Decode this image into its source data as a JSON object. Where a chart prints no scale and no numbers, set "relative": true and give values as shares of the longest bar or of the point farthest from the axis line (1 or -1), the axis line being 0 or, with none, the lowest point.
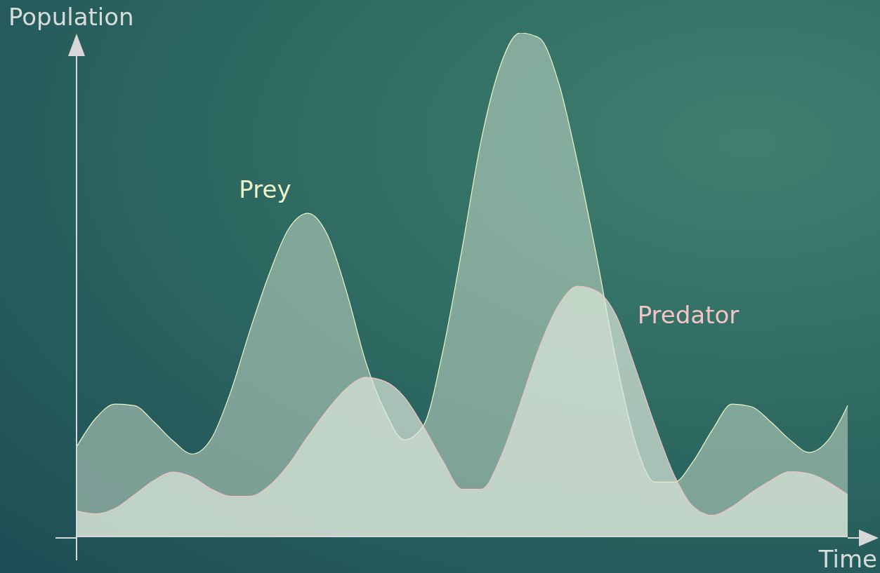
{
  "chart_data": {
    "type": "area",
    "relative": true,
    "ylabel": "Population",
    "xlabel": "Time",
    "categories": [
      null,
      null,
      null,
      null,
      null,
      null,
      null,
      null,
      null,
      null,
      null,
      null,
      null,
      null,
      null,
      null,
      null,
      null,
      null,
      null,
      null,
      null,
      null,
      null,
      null,
      null,
      null,
      null,
      null,
      null,
      null,
      null,
      null,
      null,
      null,
      null,
      null,
      null,
      null,
      null,
      null
    ],
    "series": [
      {
        "name": "Prey",
        "color": "#eef5c8",
        "values": [
          0.178,
          0.235,
          0.263,
          0.26,
          0.228,
          0.19,
          0.164,
          0.195,
          0.288,
          0.41,
          0.522,
          0.611,
          0.642,
          0.6,
          0.487,
          0.347,
          0.249,
          0.192,
          0.221,
          0.368,
          0.572,
          0.789,
          0.937,
          1.0,
          0.99,
          0.902,
          0.74,
          0.551,
          0.347,
          0.185,
          0.108,
          0.108,
          0.15,
          0.213,
          0.263,
          0.258,
          0.228,
          0.192,
          0.167,
          0.192,
          0.26
        ]
      },
      {
        "name": "Predator",
        "color": "#f4c4c4",
        "values": [
          0.051,
          0.045,
          0.056,
          0.083,
          0.111,
          0.128,
          0.118,
          0.094,
          0.08,
          0.08,
          0.101,
          0.143,
          0.199,
          0.251,
          0.294,
          0.316,
          0.308,
          0.277,
          0.218,
          0.15,
          0.094,
          0.094,
          0.157,
          0.263,
          0.375,
          0.459,
          0.497,
          0.487,
          0.438,
          0.333,
          0.221,
          0.122,
          0.059,
          0.042,
          0.059,
          0.087,
          0.111,
          0.129,
          0.125,
          0.108,
          0.083
        ]
      }
    ]
  }
}
